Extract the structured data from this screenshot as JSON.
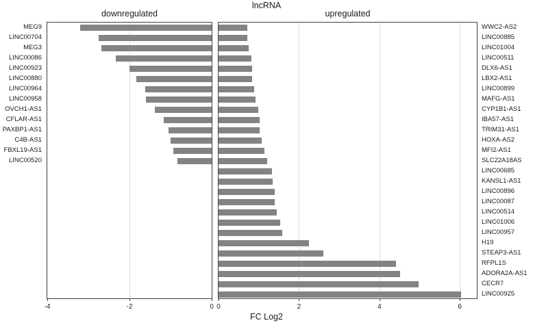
{
  "figure": {
    "title": "lncRNA",
    "xlabel": "FC Log2"
  },
  "colors": {
    "bar": "#838383",
    "grid": "#dcdcdc",
    "spine": "#3f3f3f",
    "text": "#1a1a1a",
    "background": "#ffffff"
  },
  "chart_data": [
    {
      "type": "bar",
      "orientation": "horizontal",
      "title": "downregulated",
      "label_side": "left",
      "categories": [
        "MEG9",
        "LINC00704",
        "MEG3",
        "LINC00086",
        "LINC00923",
        "LINC00880",
        "LINC00964",
        "LINC00958",
        "OVCH1-AS1",
        "CFLAR-AS1",
        "PAXBP1-AS1",
        "C4B-AS1",
        "FBXL19-AS1",
        "LINC00520"
      ],
      "values": [
        -3.2,
        -2.75,
        -2.68,
        -2.33,
        -2.0,
        -1.83,
        -1.61,
        -1.6,
        -1.39,
        -1.17,
        -1.05,
        -1.0,
        -0.94,
        -0.84
      ],
      "xlim": [
        -4,
        0
      ],
      "xticks": [
        -4,
        -2,
        0
      ],
      "gridlines_x": [
        -2
      ],
      "grid": true
    },
    {
      "type": "bar",
      "orientation": "horizontal",
      "title": "upregulated",
      "label_side": "right",
      "categories": [
        "WWC2-AS2",
        "LINC00885",
        "LINC01004",
        "LINC00511",
        "DLX6-AS1",
        "LBX2-AS1",
        "LINC00899",
        "MAFG-AS1",
        "CYP1B1-AS1",
        "IBA57-AS1",
        "TRIM31-AS1",
        "HOXA-AS2",
        "MFI2-AS1",
        "SLC22A18AS",
        "LINC00685",
        "KANSL1-AS1",
        "LINC00896",
        "LINC00087",
        "LINC00514",
        "LINC01006",
        "LINC00957",
        "H19",
        "STEAP3-AS1",
        "RFPL1S",
        "ADORA2A-AS1",
        "CECR7",
        "LINC00925"
      ],
      "values": [
        0.72,
        0.71,
        0.75,
        0.81,
        0.84,
        0.83,
        0.89,
        0.92,
        0.99,
        1.02,
        1.02,
        1.07,
        1.14,
        1.21,
        1.33,
        1.35,
        1.39,
        1.4,
        1.45,
        1.54,
        1.59,
        2.24,
        2.61,
        4.41,
        4.51,
        4.97,
        6.02
      ],
      "xlim": [
        0,
        6.42
      ],
      "xticks": [
        0,
        2,
        4,
        6
      ],
      "gridlines_x": [
        2,
        4,
        6
      ],
      "grid": true
    }
  ]
}
